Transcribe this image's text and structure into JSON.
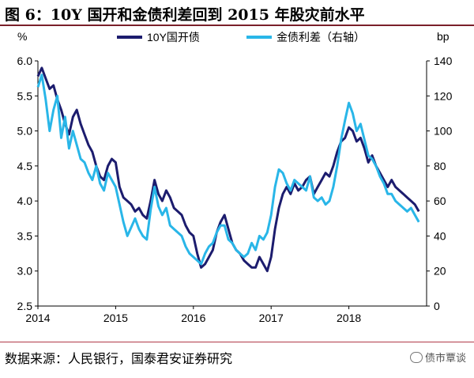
{
  "header": {
    "title": "图 6：10Y 国开和金债利差回到 2015 年股灾前水平"
  },
  "footer": {
    "source": "数据来源：人民银行，国泰君安证券研究",
    "watermark": "债市覃谈"
  },
  "colors": {
    "cdb": "#1c1c6e",
    "spread": "#29b6e8",
    "title_rule": "#7a1f2a"
  },
  "chart_data": {
    "type": "line",
    "title": "10Y 国开和金债利差回到 2015 年股灾前水平",
    "left_unit": "%",
    "right_unit": "bp",
    "x_ticks": [
      "2014",
      "2015",
      "2016",
      "2017",
      "2018"
    ],
    "x_range": [
      2014.0,
      2019.0
    ],
    "y_left_ticks": [
      "2.5",
      "3.0",
      "3.5",
      "4.0",
      "4.5",
      "5.0",
      "5.5",
      "6.0"
    ],
    "y_left_range": [
      2.5,
      6.0
    ],
    "y_right_ticks": [
      "0",
      "20",
      "40",
      "60",
      "80",
      "100",
      "120",
      "140"
    ],
    "y_right_range": [
      0,
      140
    ],
    "legend_position": "top-center",
    "series": [
      {
        "name": "10Y国开债",
        "axis": "left",
        "color": "#1c1c6e",
        "x": [
          2014.0,
          2014.05,
          2014.1,
          2014.15,
          2014.2,
          2014.25,
          2014.3,
          2014.35,
          2014.4,
          2014.45,
          2014.5,
          2014.55,
          2014.6,
          2014.65,
          2014.7,
          2014.75,
          2014.8,
          2014.85,
          2014.9,
          2014.95,
          2015.0,
          2015.05,
          2015.1,
          2015.15,
          2015.2,
          2015.25,
          2015.3,
          2015.35,
          2015.4,
          2015.45,
          2015.5,
          2015.55,
          2015.6,
          2015.65,
          2015.7,
          2015.75,
          2015.8,
          2015.85,
          2015.9,
          2015.95,
          2016.0,
          2016.05,
          2016.1,
          2016.15,
          2016.2,
          2016.25,
          2016.3,
          2016.35,
          2016.4,
          2016.45,
          2016.5,
          2016.55,
          2016.6,
          2016.65,
          2016.7,
          2016.75,
          2016.8,
          2016.85,
          2016.9,
          2016.95,
          2017.0,
          2017.05,
          2017.1,
          2017.15,
          2017.2,
          2017.25,
          2017.3,
          2017.35,
          2017.4,
          2017.45,
          2017.5,
          2017.55,
          2017.6,
          2017.65,
          2017.7,
          2017.75,
          2017.8,
          2017.85,
          2017.9,
          2017.95,
          2018.0,
          2018.05,
          2018.1,
          2018.15,
          2018.2,
          2018.25,
          2018.3,
          2018.35,
          2018.4,
          2018.45,
          2018.5,
          2018.55,
          2018.6,
          2018.65,
          2018.7,
          2018.75,
          2018.8,
          2018.85,
          2018.9
        ],
        "y": [
          5.78,
          5.9,
          5.75,
          5.6,
          5.65,
          5.45,
          5.3,
          5.1,
          4.95,
          5.2,
          5.3,
          5.1,
          4.95,
          4.8,
          4.7,
          4.5,
          4.35,
          4.3,
          4.5,
          4.6,
          4.55,
          4.2,
          4.05,
          4.0,
          3.95,
          3.85,
          3.9,
          3.8,
          3.75,
          4.0,
          4.3,
          4.1,
          4.0,
          4.15,
          4.05,
          3.9,
          3.85,
          3.8,
          3.65,
          3.55,
          3.5,
          3.25,
          3.05,
          3.1,
          3.2,
          3.3,
          3.55,
          3.7,
          3.8,
          3.6,
          3.4,
          3.3,
          3.25,
          3.15,
          3.1,
          3.05,
          3.05,
          3.2,
          3.1,
          3.0,
          3.2,
          3.6,
          3.9,
          4.1,
          4.2,
          4.1,
          4.25,
          4.15,
          4.2,
          4.3,
          4.35,
          4.1,
          4.2,
          4.3,
          4.4,
          4.35,
          4.5,
          4.7,
          4.85,
          4.9,
          5.05,
          5.0,
          4.85,
          4.9,
          4.75,
          4.55,
          4.65,
          4.5,
          4.4,
          4.3,
          4.2,
          4.3,
          4.2,
          4.15,
          4.1,
          4.05,
          4.0,
          3.95,
          3.85
        ]
      },
      {
        "name": "金债利差（右轴）",
        "axis": "right",
        "color": "#29b6e8",
        "x": [
          2014.0,
          2014.05,
          2014.1,
          2014.15,
          2014.2,
          2014.25,
          2014.3,
          2014.35,
          2014.4,
          2014.45,
          2014.5,
          2014.55,
          2014.6,
          2014.65,
          2014.7,
          2014.75,
          2014.8,
          2014.85,
          2014.9,
          2014.95,
          2015.0,
          2015.05,
          2015.1,
          2015.15,
          2015.2,
          2015.25,
          2015.3,
          2015.35,
          2015.4,
          2015.45,
          2015.5,
          2015.55,
          2015.6,
          2015.65,
          2015.7,
          2015.75,
          2015.8,
          2015.85,
          2015.9,
          2015.95,
          2016.0,
          2016.05,
          2016.1,
          2016.15,
          2016.2,
          2016.25,
          2016.3,
          2016.35,
          2016.4,
          2016.45,
          2016.5,
          2016.55,
          2016.6,
          2016.65,
          2016.7,
          2016.75,
          2016.8,
          2016.85,
          2016.9,
          2016.95,
          2017.0,
          2017.05,
          2017.1,
          2017.15,
          2017.2,
          2017.25,
          2017.3,
          2017.35,
          2017.4,
          2017.45,
          2017.5,
          2017.55,
          2017.6,
          2017.65,
          2017.7,
          2017.75,
          2017.8,
          2017.85,
          2017.9,
          2017.95,
          2018.0,
          2018.05,
          2018.1,
          2018.15,
          2018.2,
          2018.25,
          2018.3,
          2018.35,
          2018.4,
          2018.45,
          2018.5,
          2018.55,
          2018.6,
          2018.65,
          2018.7,
          2018.75,
          2018.8,
          2018.85,
          2018.9
        ],
        "y": [
          125,
          132,
          118,
          100,
          112,
          120,
          96,
          108,
          90,
          100,
          92,
          84,
          82,
          76,
          72,
          80,
          70,
          66,
          76,
          72,
          68,
          58,
          48,
          40,
          45,
          50,
          44,
          40,
          38,
          55,
          68,
          57,
          52,
          56,
          46,
          44,
          42,
          40,
          34,
          30,
          28,
          26,
          24,
          30,
          34,
          36,
          42,
          46,
          46,
          38,
          36,
          32,
          30,
          28,
          30,
          36,
          32,
          40,
          38,
          42,
          52,
          68,
          78,
          76,
          70,
          66,
          72,
          70,
          68,
          66,
          74,
          62,
          60,
          62,
          58,
          60,
          68,
          80,
          95,
          106,
          116,
          110,
          100,
          104,
          95,
          86,
          84,
          80,
          74,
          70,
          64,
          64,
          60,
          58,
          56,
          54,
          56,
          52,
          48
        ]
      }
    ]
  }
}
